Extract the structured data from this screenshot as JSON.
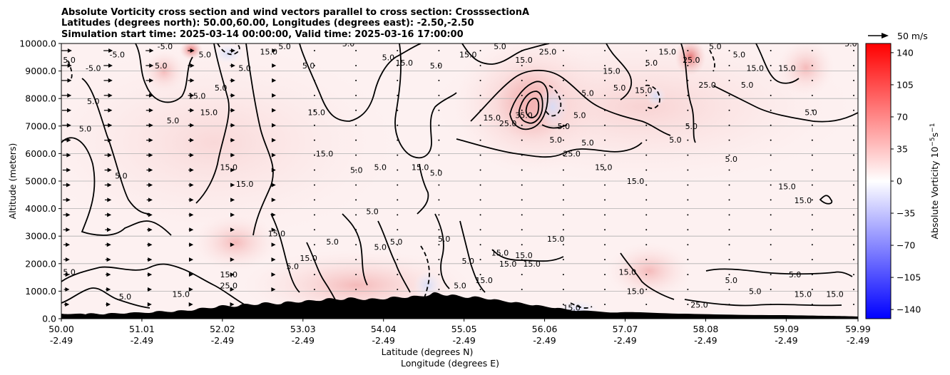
{
  "chart_data": {
    "type": "contour",
    "title": [
      "Absolute Vorticity cross section and wind vectors parallel to cross section: CrosssectionA",
      "Latitudes (degrees north): 50.00,60.00, Longitudes (degrees east): -2.50,-2.50",
      "Simulation start time: 2025-03-14 00:00:00, Valid time: 2025-03-16 17:00:00"
    ],
    "xlabel": [
      "Latitude (degrees N)",
      "Longitude (degrees E)"
    ],
    "ylabel": "Altitude (meters)",
    "x_range": [
      50.0,
      59.99
    ],
    "ylim": [
      0,
      10000
    ],
    "x_ticks": [
      {
        "lat": "50.00",
        "lon": "-2.49",
        "value": 50.0
      },
      {
        "lat": "51.01",
        "lon": "-2.49",
        "value": 51.01
      },
      {
        "lat": "52.02",
        "lon": "-2.49",
        "value": 52.02
      },
      {
        "lat": "53.03",
        "lon": "-2.49",
        "value": 53.03
      },
      {
        "lat": "54.04",
        "lon": "-2.49",
        "value": 54.04
      },
      {
        "lat": "55.05",
        "lon": "-2.49",
        "value": 55.05
      },
      {
        "lat": "56.06",
        "lon": "-2.49",
        "value": 56.06
      },
      {
        "lat": "57.07",
        "lon": "-2.49",
        "value": 57.07
      },
      {
        "lat": "58.08",
        "lon": "-2.49",
        "value": 58.08
      },
      {
        "lat": "59.09",
        "lon": "-2.49",
        "value": 59.09
      },
      {
        "lat": "59.99",
        "lon": "-2.49",
        "value": 59.99
      }
    ],
    "y_ticks": [
      {
        "label": "0.0",
        "value": 0
      },
      {
        "label": "1000.0",
        "value": 1000
      },
      {
        "label": "2000.0",
        "value": 2000
      },
      {
        "label": "3000.0",
        "value": 3000
      },
      {
        "label": "4000.0",
        "value": 4000
      },
      {
        "label": "5000.0",
        "value": 5000
      },
      {
        "label": "6000.0",
        "value": 6000
      },
      {
        "label": "7000.0",
        "value": 7000
      },
      {
        "label": "8000.0",
        "value": 8000
      },
      {
        "label": "9000.0",
        "value": 9000
      },
      {
        "label": "10000.0",
        "value": 10000
      }
    ],
    "grid_horizontal": true,
    "colorbar": {
      "label": "Absolute Vorticity 10",
      "label_exp": "−5",
      "label_unit": "s",
      "label_unit_exp": "−1",
      "cmap": "bwr",
      "range": [
        -150,
        150
      ],
      "ticks": [
        {
          "label": "140",
          "value": 140
        },
        {
          "label": "105",
          "value": 105
        },
        {
          "label": "70",
          "value": 70
        },
        {
          "label": "35",
          "value": 35
        },
        {
          "label": "0",
          "value": 0
        },
        {
          "label": "−35",
          "value": -35
        },
        {
          "label": "−70",
          "value": -70
        },
        {
          "label": "−105",
          "value": -105
        },
        {
          "label": "−140",
          "value": -140
        }
      ],
      "colors": {
        "low": "#0000ff",
        "mid": "#ffffff",
        "high": "#ff0000"
      }
    },
    "quiver_key": {
      "label": "50 m/s",
      "value": 50
    },
    "contour_levels": [
      -5.0,
      5.0,
      15.0,
      25.0,
      35.0
    ],
    "contour_labels": [
      {
        "text": "5.0",
        "lat": 50.1,
        "alt": 9400
      },
      {
        "text": "-5.0",
        "lat": 50.4,
        "alt": 9100
      },
      {
        "text": "-5.0",
        "lat": 50.7,
        "alt": 9600
      },
      {
        "text": "5.0",
        "lat": 50.4,
        "alt": 7900
      },
      {
        "text": "5.0",
        "lat": 50.3,
        "alt": 6900
      },
      {
        "text": "5.0",
        "lat": 50.75,
        "alt": 5200
      },
      {
        "text": "5.0",
        "lat": 51.4,
        "alt": 7200
      },
      {
        "text": "5.0",
        "lat": 51.25,
        "alt": 9200
      },
      {
        "text": "-5.0",
        "lat": 51.3,
        "alt": 9900
      },
      {
        "text": "5.0",
        "lat": 51.8,
        "alt": 9600
      },
      {
        "text": "15.0",
        "lat": 51.7,
        "alt": 8100
      },
      {
        "text": "15.0",
        "lat": 51.85,
        "alt": 7500
      },
      {
        "text": "15.0",
        "lat": 52.1,
        "alt": 5500
      },
      {
        "text": "5.0",
        "lat": 52.0,
        "alt": 8400
      },
      {
        "text": "5.0",
        "lat": 52.3,
        "alt": 9100
      },
      {
        "text": "15.0",
        "lat": 52.6,
        "alt": 9700
      },
      {
        "text": "5.0",
        "lat": 52.8,
        "alt": 9900
      },
      {
        "text": "15.0",
        "lat": 52.3,
        "alt": 4900
      },
      {
        "text": "5.0",
        "lat": 53.1,
        "alt": 9200
      },
      {
        "text": "15.0",
        "lat": 53.2,
        "alt": 7500
      },
      {
        "text": "15.0",
        "lat": 53.3,
        "alt": 6000
      },
      {
        "text": "5.0",
        "lat": 53.6,
        "alt": 10000
      },
      {
        "text": "5.0",
        "lat": 53.7,
        "alt": 5400
      },
      {
        "text": "5.0",
        "lat": 54.1,
        "alt": 9500
      },
      {
        "text": "5.0",
        "lat": 54.0,
        "alt": 5500
      },
      {
        "text": "15.0",
        "lat": 54.3,
        "alt": 9300
      },
      {
        "text": "15.0",
        "lat": 54.5,
        "alt": 5500
      },
      {
        "text": "5.0",
        "lat": 54.7,
        "alt": 9200
      },
      {
        "text": "5.0",
        "lat": 54.7,
        "alt": 5300
      },
      {
        "text": "15.0",
        "lat": 55.1,
        "alt": 9600
      },
      {
        "text": "5.0",
        "lat": 55.5,
        "alt": 9900
      },
      {
        "text": "5.0",
        "lat": 53.9,
        "alt": 3900
      },
      {
        "text": "15.0",
        "lat": 55.4,
        "alt": 7300
      },
      {
        "text": "25.0",
        "lat": 55.6,
        "alt": 7100
      },
      {
        "text": "35.0",
        "lat": 55.8,
        "alt": 7400
      },
      {
        "text": "25.0",
        "lat": 56.1,
        "alt": 9700
      },
      {
        "text": "15.0",
        "lat": 55.8,
        "alt": 9400
      },
      {
        "text": "5.0",
        "lat": 56.2,
        "alt": 6500
      },
      {
        "text": "5.0",
        "lat": 56.3,
        "alt": 7000
      },
      {
        "text": "25.0",
        "lat": 56.4,
        "alt": 6000
      },
      {
        "text": "5.0",
        "lat": 56.6,
        "alt": 6400
      },
      {
        "text": "15.0",
        "lat": 56.9,
        "alt": 9000
      },
      {
        "text": "5.0",
        "lat": 56.6,
        "alt": 8200
      },
      {
        "text": "5.0",
        "lat": 56.5,
        "alt": 7400
      },
      {
        "text": "5.0",
        "lat": 57.0,
        "alt": 8400
      },
      {
        "text": "15.0",
        "lat": 56.8,
        "alt": 5500
      },
      {
        "text": "15.0",
        "lat": 57.2,
        "alt": 5000
      },
      {
        "text": "15.0",
        "lat": 57.3,
        "alt": 8300
      },
      {
        "text": "5.0",
        "lat": 57.4,
        "alt": 9300
      },
      {
        "text": "15.0",
        "lat": 57.6,
        "alt": 9700
      },
      {
        "text": "5.0",
        "lat": 57.7,
        "alt": 6500
      },
      {
        "text": "5.0",
        "lat": 57.9,
        "alt": 7000
      },
      {
        "text": "25.0",
        "lat": 57.9,
        "alt": 9400
      },
      {
        "text": "5.0",
        "lat": 58.2,
        "alt": 9900
      },
      {
        "text": "25.0",
        "lat": 58.1,
        "alt": 8500
      },
      {
        "text": "5.0",
        "lat": 58.4,
        "alt": 5800
      },
      {
        "text": "5.0",
        "lat": 58.5,
        "alt": 9600
      },
      {
        "text": "15.0",
        "lat": 58.7,
        "alt": 9100
      },
      {
        "text": "15.0",
        "lat": 59.1,
        "alt": 9100
      },
      {
        "text": "5.0",
        "lat": 58.6,
        "alt": 8500
      },
      {
        "text": "15.0",
        "lat": 59.1,
        "alt": 4800
      },
      {
        "text": "15.0",
        "lat": 59.3,
        "alt": 4300
      },
      {
        "text": "5.0",
        "lat": 59.4,
        "alt": 7500
      },
      {
        "text": "5.0",
        "lat": 59.9,
        "alt": 10000
      },
      {
        "text": "15.0",
        "lat": 52.1,
        "alt": 1600
      },
      {
        "text": "15.0",
        "lat": 52.7,
        "alt": 3100
      },
      {
        "text": "15.0",
        "lat": 53.1,
        "alt": 2200
      },
      {
        "text": "5.0",
        "lat": 52.9,
        "alt": 1900
      },
      {
        "text": "5.0",
        "lat": 53.4,
        "alt": 2800
      },
      {
        "text": "5.0",
        "lat": 54.0,
        "alt": 2600
      },
      {
        "text": "5.0",
        "lat": 54.2,
        "alt": 2800
      },
      {
        "text": "5.0",
        "lat": 54.8,
        "alt": 2900
      },
      {
        "text": "15.0",
        "lat": 55.5,
        "alt": 2400
      },
      {
        "text": "5.0",
        "lat": 55.1,
        "alt": 2100
      },
      {
        "text": "15.0",
        "lat": 55.6,
        "alt": 2000
      },
      {
        "text": "15.0",
        "lat": 55.8,
        "alt": 2300
      },
      {
        "text": "15.0",
        "lat": 55.9,
        "alt": 2000
      },
      {
        "text": "15.0",
        "lat": 56.2,
        "alt": 2900
      },
      {
        "text": "15.0",
        "lat": 57.1,
        "alt": 1700
      },
      {
        "text": "5.0",
        "lat": 58.4,
        "alt": 1400
      },
      {
        "text": "5.0",
        "lat": 58.7,
        "alt": 1000
      },
      {
        "text": "5.0",
        "lat": 59.2,
        "alt": 1600
      },
      {
        "text": "15.0",
        "lat": 59.3,
        "alt": 900
      },
      {
        "text": "15.0",
        "lat": 59.7,
        "alt": 900
      },
      {
        "text": "25.0",
        "lat": 58.0,
        "alt": 500
      },
      {
        "text": "5.0",
        "lat": 50.1,
        "alt": 1700
      },
      {
        "text": "25.0",
        "lat": 52.1,
        "alt": 1200
      },
      {
        "text": "15.0",
        "lat": 51.5,
        "alt": 900
      },
      {
        "text": "5.0",
        "lat": 50.8,
        "alt": 800
      },
      {
        "text": "15.0",
        "lat": 55.3,
        "alt": 1400
      },
      {
        "text": "5.0",
        "lat": 55.0,
        "alt": 1200
      },
      {
        "text": "15.0",
        "lat": 56.4,
        "alt": 400
      },
      {
        "text": "15.0",
        "lat": 57.2,
        "alt": 1000
      }
    ]
  }
}
